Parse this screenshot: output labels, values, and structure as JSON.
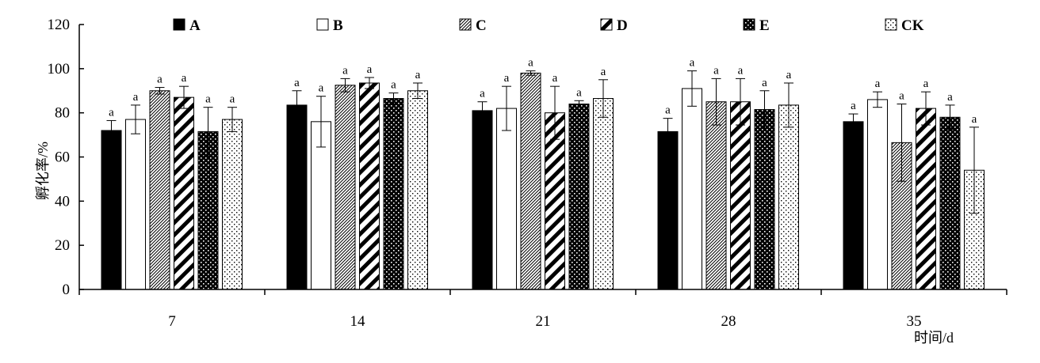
{
  "chart_data": {
    "type": "bar",
    "title": "",
    "xlabel": "时间/d",
    "ylabel": "孵化率/%",
    "ylim": [
      0,
      120
    ],
    "yticks": [
      0,
      20,
      40,
      60,
      80,
      100,
      120
    ],
    "grid": false,
    "legend_position": "top",
    "categories": [
      "7",
      "14",
      "21",
      "28",
      "35"
    ],
    "series": [
      {
        "name": "A",
        "pattern": "solid-black",
        "values": [
          72,
          83.5,
          81,
          71.5,
          76
        ],
        "errors": [
          4.5,
          6.5,
          4,
          6,
          3.5
        ],
        "labels": [
          "a",
          "a",
          "a",
          "a",
          "a"
        ]
      },
      {
        "name": "B",
        "pattern": "white",
        "values": [
          77,
          76,
          82,
          91,
          86
        ],
        "errors": [
          6.5,
          11.5,
          10,
          8,
          3.5
        ],
        "labels": [
          "a",
          "a",
          "a",
          "a",
          "a"
        ]
      },
      {
        "name": "C",
        "pattern": "thin-diagonal",
        "values": [
          90,
          92.5,
          98,
          85,
          66.5
        ],
        "errors": [
          1.5,
          3,
          1,
          10.5,
          17.5
        ],
        "labels": [
          "a",
          "a",
          "a",
          "a",
          "a"
        ]
      },
      {
        "name": "D",
        "pattern": "thick-diagonal",
        "values": [
          87,
          93.5,
          80,
          85,
          82
        ],
        "errors": [
          5,
          2.5,
          12,
          10.5,
          7.5
        ],
        "labels": [
          "a",
          "a",
          "a",
          "a",
          "a"
        ]
      },
      {
        "name": "E",
        "pattern": "black-dots",
        "values": [
          71.5,
          86.5,
          84,
          81.5,
          78
        ],
        "errors": [
          11,
          2.5,
          1.5,
          8.5,
          5.5
        ],
        "labels": [
          "a",
          "a",
          "a",
          "a",
          "a"
        ]
      },
      {
        "name": "CK",
        "pattern": "white-dots",
        "values": [
          77,
          90,
          86.5,
          83.5,
          54
        ],
        "errors": [
          5.5,
          3.5,
          8.5,
          10,
          19.5
        ],
        "labels": [
          "a",
          "a",
          "a",
          "a",
          "a"
        ]
      }
    ]
  }
}
